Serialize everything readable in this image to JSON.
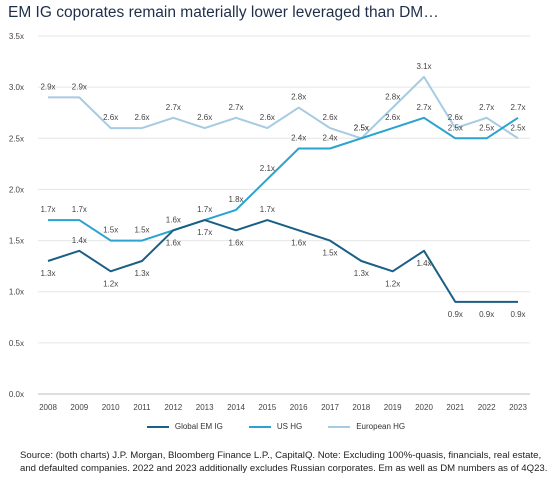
{
  "title": "EM IG coporates remain materially lower leveraged than DM…",
  "source": "Source: (both charts) J.P. Morgan, Bloomberg Finance L.P., CapitalQ. Note: Excluding 100%-quasis, financials, real estate, and defaulted companies. 2022 and 2023 additionally excludes Russian corporates. Em as well as DM numbers as of 4Q23.",
  "chart_data": {
    "type": "line",
    "title": "EM IG coporates remain materially lower leveraged than DM…",
    "xlabel": "",
    "ylabel": "",
    "categories": [
      "2008",
      "2009",
      "2010",
      "2011",
      "2012",
      "2013",
      "2014",
      "2015",
      "2016",
      "2017",
      "2018",
      "2019",
      "2020",
      "2021",
      "2022",
      "2023"
    ],
    "ylim": [
      0,
      3.5
    ],
    "yticks": [
      0,
      0.5,
      1.0,
      1.5,
      2.0,
      2.5,
      3.0,
      3.5
    ],
    "ytick_labels": [
      "0.0x",
      "0.5x",
      "1.0x",
      "1.5x",
      "2.0x",
      "2.5x",
      "3.0x",
      "3.5x"
    ],
    "grid": true,
    "legend_position": "bottom",
    "series": [
      {
        "name": "Global EM IG",
        "color": "#1a5f86",
        "values": [
          1.3,
          1.4,
          1.2,
          1.3,
          1.6,
          1.7,
          1.6,
          1.7,
          1.6,
          1.5,
          1.3,
          1.2,
          1.4,
          0.9,
          0.9,
          0.9
        ],
        "labels": [
          "1.3x",
          "1.4x",
          "1.2x",
          "1.3x",
          "1.6x",
          "1.7x",
          "1.6x",
          "1.7x",
          "1.6x",
          "1.5x",
          "1.3x",
          "1.2x",
          "1.4x",
          "0.9x",
          "0.9x",
          "0.9x"
        ],
        "label_pos": [
          "below",
          "above",
          "below",
          "below",
          "below",
          "below",
          "below",
          "above",
          "below",
          "below",
          "below",
          "below",
          "below",
          "below",
          "below",
          "below"
        ]
      },
      {
        "name": "US HG",
        "color": "#2aa3cf",
        "values": [
          1.7,
          1.7,
          1.5,
          1.5,
          1.6,
          1.7,
          1.8,
          2.1,
          2.4,
          2.4,
          2.5,
          2.6,
          2.7,
          2.5,
          2.5,
          2.7
        ],
        "labels": [
          "1.7x",
          "1.7x",
          "1.5x",
          "1.5x",
          "1.6x",
          "1.7x",
          "1.8x",
          "2.1x",
          "2.4x",
          "2.4x",
          "2.5x",
          "2.6x",
          "2.7x",
          "2.5x",
          "2.5x",
          "2.7x"
        ],
        "label_pos": [
          "above",
          "above",
          "above",
          "above",
          "above",
          "above",
          "above",
          "above",
          "above",
          "above",
          "above",
          "above",
          "above",
          "above",
          "above",
          "above"
        ]
      },
      {
        "name": "European HG",
        "color": "#a7cbe2",
        "values": [
          2.9,
          2.9,
          2.6,
          2.6,
          2.7,
          2.6,
          2.7,
          2.6,
          2.8,
          2.6,
          2.5,
          2.8,
          3.1,
          2.6,
          2.7,
          2.5
        ],
        "labels": [
          "2.9x",
          "2.9x",
          "2.6x",
          "2.6x",
          "2.7x",
          "2.6x",
          "2.7x",
          "2.6x",
          "2.8x",
          "2.6x",
          "2.5x",
          "2.8x",
          "3.1x",
          "2.6x",
          "2.7x",
          "2.5x"
        ],
        "label_pos": [
          "above",
          "above",
          "above",
          "above",
          "above",
          "above",
          "above",
          "above",
          "above",
          "above",
          "above",
          "above",
          "above",
          "above",
          "above",
          "above"
        ]
      }
    ]
  }
}
